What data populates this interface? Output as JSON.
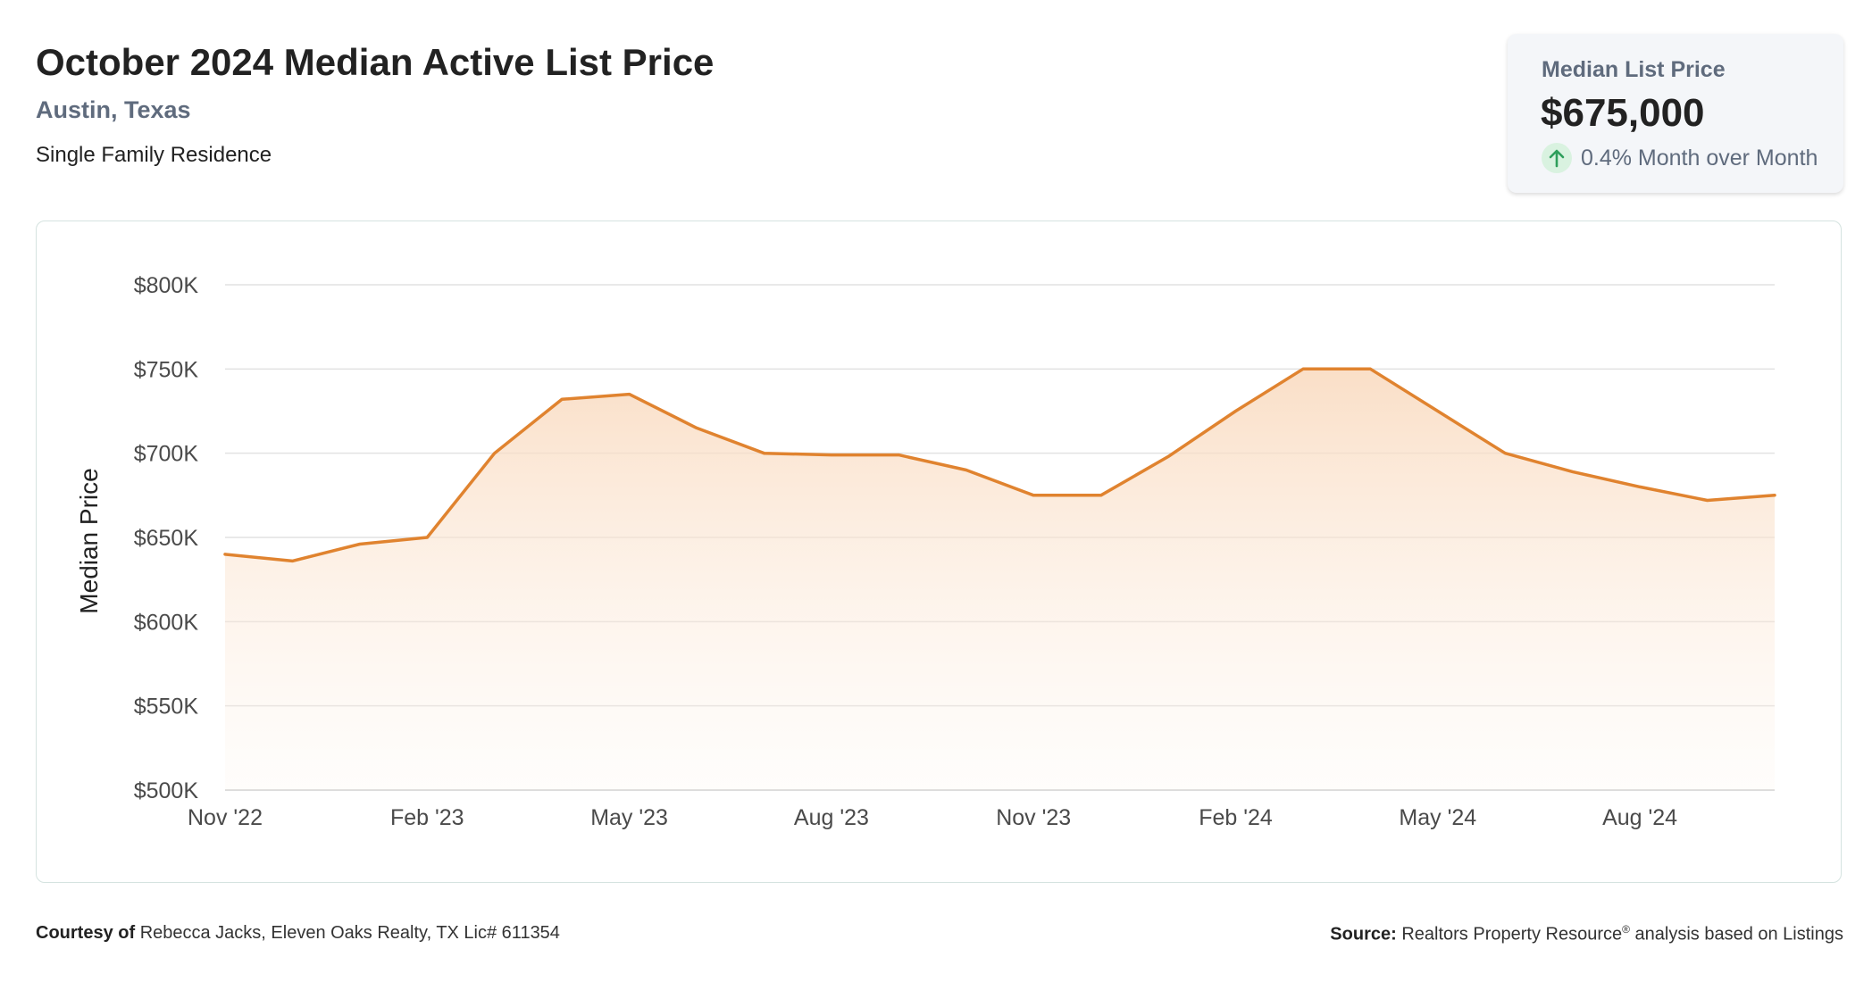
{
  "header": {
    "title": "October 2024 Median Active List Price",
    "location": "Austin, Texas",
    "property_type": "Single Family Residence"
  },
  "kpi": {
    "label": "Median List Price",
    "value": "$675,000",
    "change": "0.4% Month over Month",
    "direction": "up",
    "icon": "arrow-up-icon"
  },
  "footer": {
    "courtesy_label": "Courtesy of",
    "courtesy_text": "Rebecca Jacks, Eleven Oaks Realty, TX Lic# 611354",
    "source_label": "Source:",
    "source_text_before": "Realtors Property Resource",
    "source_registered": "®",
    "source_text_after": " analysis based on Listings"
  },
  "colors": {
    "line": "#e0832f",
    "fill_top": "#f9d9bd",
    "grid": "#e2e2e2",
    "subtitle": "#5f6b7d",
    "up_arrow": "#2e9e5b"
  },
  "chart_data": {
    "type": "area",
    "title": "October 2024 Median Active List Price",
    "xlabel": "",
    "ylabel": "Median Price",
    "x": [
      "Nov '22",
      "Dec '22",
      "Jan '23",
      "Feb '23",
      "Mar '23",
      "Apr '23",
      "May '23",
      "Jun '23",
      "Jul '23",
      "Aug '23",
      "Sep '23",
      "Oct '23",
      "Nov '23",
      "Dec '23",
      "Jan '24",
      "Feb '24",
      "Mar '24",
      "Apr '24",
      "May '24",
      "Jun '24",
      "Jul '24",
      "Aug '24",
      "Sep '24",
      "Oct '24"
    ],
    "x_tick_labels": [
      "Nov '22",
      "Feb '23",
      "May '23",
      "Aug '23",
      "Nov '23",
      "Feb '24",
      "May '24",
      "Aug '24"
    ],
    "series": [
      {
        "values": [
          640000,
          636000,
          646000,
          650000,
          700000,
          732000,
          735000,
          715000,
          700000,
          699000,
          699000,
          690000,
          675000,
          675000,
          698000,
          725000,
          750000,
          750000,
          725000,
          700000,
          689000,
          680000,
          672000,
          675000
        ]
      }
    ],
    "ylim": [
      500000,
      800000
    ],
    "y_ticks": [
      500000,
      550000,
      600000,
      650000,
      700000,
      750000,
      800000
    ],
    "y_tick_labels": [
      "$500K",
      "$550K",
      "$600K",
      "$650K",
      "$700K",
      "$750K",
      "$800K"
    ],
    "grid": "horizontal",
    "legend": "none"
  }
}
